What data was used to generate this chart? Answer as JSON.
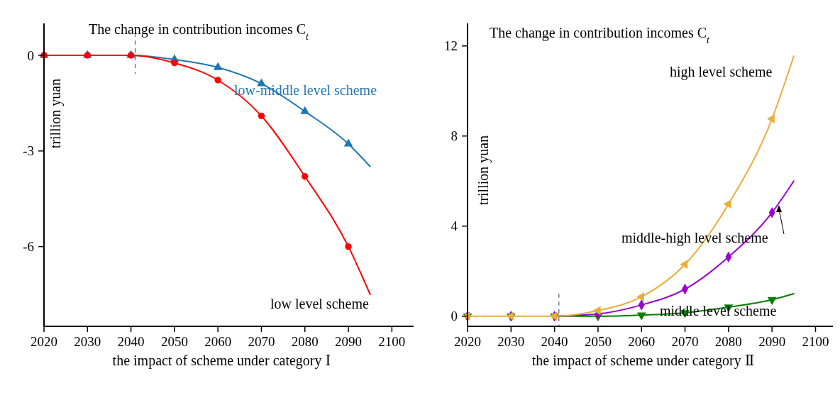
{
  "chart_data": [
    {
      "type": "line",
      "title": "The change in contribution incomes C$_{t}$",
      "xlabel": "the impact of scheme under category Ⅰ",
      "ylabel": "trillion yuan",
      "xlim": [
        2020,
        2105
      ],
      "ylim": [
        -8.5,
        1
      ],
      "xticks": [
        2020,
        2030,
        2040,
        2050,
        2060,
        2070,
        2080,
        2090,
        2100
      ],
      "yticks": [
        {
          "value": 0,
          "label": "0"
        },
        {
          "value": -3,
          "label": "-3"
        },
        {
          "value": -6,
          "label": "-6"
        }
      ],
      "ref_lines": [
        {
          "axis": "x",
          "value": 2041,
          "color": "#808080",
          "line_style": "dashed"
        }
      ],
      "series": [
        {
          "name": "low-middle level scheme",
          "color": "#1f77b4",
          "x": [
            2020,
            2030,
            2040,
            2050,
            2060,
            2070,
            2080,
            2090,
            2095
          ],
          "values": [
            0,
            0,
            0,
            -0.13,
            -0.38,
            -0.89,
            -1.76,
            -2.78,
            -3.49
          ]
        },
        {
          "type": "scatter",
          "marker": "triangle",
          "color": "#1f77b4",
          "x": [
            2020,
            2030,
            2040,
            2050,
            2060,
            2070,
            2080,
            2090
          ],
          "values": [
            0,
            0,
            0,
            -0.13,
            -0.38,
            -0.89,
            -1.76,
            -2.78
          ]
        },
        {
          "name": "low level scheme",
          "color": "#ff0000",
          "x": [
            2020,
            2030,
            2040,
            2050,
            2060,
            2070,
            2080,
            2090,
            2095
          ],
          "values": [
            0,
            0,
            0,
            -0.24,
            -0.78,
            -1.9,
            -3.8,
            -6.0,
            -7.5
          ]
        },
        {
          "type": "scatter",
          "marker": "circle",
          "color": "#ff0000",
          "x": [
            2020,
            2030,
            2040,
            2050,
            2060,
            2070,
            2080,
            2090
          ],
          "values": [
            0,
            0,
            0,
            -0.24,
            -0.78,
            -1.9,
            -3.8,
            -6.0
          ]
        }
      ]
    },
    {
      "type": "line",
      "title": "The change in contribution incomes C$_{t}$",
      "xlabel": "the impact of scheme under category Ⅱ",
      "ylabel": "trillion yuan",
      "xlim": [
        2020,
        2104
      ],
      "ylim": [
        -0.45,
        13
      ],
      "xticks": [
        2020,
        2030,
        2040,
        2050,
        2060,
        2070,
        2080,
        2090,
        2100
      ],
      "yticks": [
        0,
        4,
        8,
        12
      ],
      "ref_lines": [
        {
          "axis": "x",
          "value": 2041,
          "color": "#808080",
          "line_style": "dashed"
        }
      ],
      "series": [
        {
          "name": "middle level scheme",
          "color": "#008000",
          "x": [
            2040,
            2050,
            2060,
            2070,
            2080,
            2090,
            2095
          ],
          "values": [
            0,
            0,
            0.05,
            0.15,
            0.4,
            0.73,
            1.0
          ]
        },
        {
          "type": "scatter",
          "marker": "triangle",
          "color": "#008000",
          "x": [
            2020,
            2030,
            2040,
            2050,
            2060,
            2070,
            2080,
            2090
          ],
          "values": [
            0,
            0,
            0,
            0,
            0.05,
            0.15,
            0.4,
            0.73
          ]
        },
        {
          "name": "middle-high level scheme",
          "color": "#9b00d0",
          "x": [
            2040,
            2050,
            2060,
            2070,
            2080,
            2090,
            2095
          ],
          "values": [
            0,
            0.1,
            0.5,
            1.2,
            2.63,
            4.6,
            6.0
          ]
        },
        {
          "type": "scatter",
          "marker": "diamond",
          "color": "#9b00d0",
          "x": [
            2020,
            2030,
            2040,
            2050,
            2060,
            2070,
            2080,
            2090
          ],
          "values": [
            0,
            0,
            0,
            0.1,
            0.5,
            1.2,
            2.63,
            4.6
          ]
        },
        {
          "name": "high level scheme",
          "color": "#e8ae3a",
          "x": [
            2020,
            2030,
            2040,
            2050,
            2060,
            2070,
            2080,
            2090,
            2095
          ],
          "values": [
            0,
            0,
            0,
            0.25,
            0.86,
            2.3,
            4.98,
            8.76,
            11.55
          ]
        },
        {
          "type": "scatter",
          "marker": "triangle",
          "color": "#e8ae3a",
          "x": [
            2020,
            2030,
            2040,
            2050,
            2060,
            2070,
            2080,
            2090
          ],
          "values": [
            0,
            0,
            0,
            0.25,
            0.86,
            2.3,
            4.98,
            8.76
          ]
        }
      ]
    }
  ]
}
